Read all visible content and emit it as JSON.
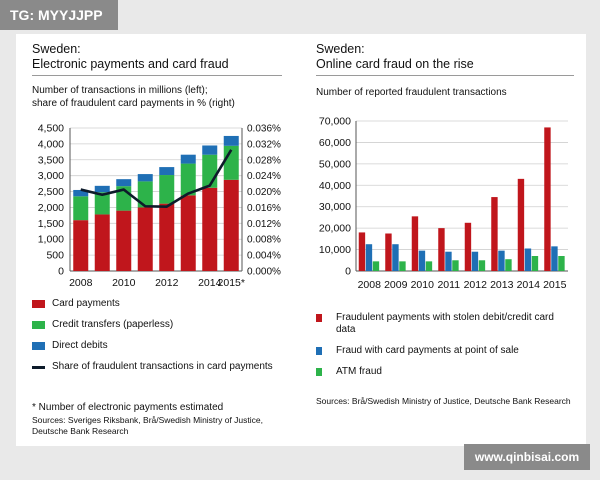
{
  "watermark_top": "TG: MYYJJPP",
  "watermark_bottom": "www.qinbisai.com",
  "chart_data": [
    {
      "type": "bar",
      "stacked": true,
      "title": "Sweden:",
      "subtitle": "Electronic payments and card fraud",
      "ylabel": "Number of transactions in millions (left);",
      "y2label": "share of fraudulent card payments in % (right)",
      "categories": [
        "2008",
        "2009",
        "2010",
        "2011",
        "2012",
        "2013",
        "2014",
        "2015*"
      ],
      "x_tick_labels": [
        "2008",
        "",
        "2010",
        "",
        "2012",
        "",
        "2014",
        "2015*"
      ],
      "ylim": [
        0,
        4500
      ],
      "y_ticks": [
        "0",
        "500",
        "1,000",
        "1,500",
        "2,000",
        "2,500",
        "3,000",
        "3,500",
        "4,000",
        "4,500"
      ],
      "y2lim": [
        0,
        0.036
      ],
      "y2_ticks": [
        "0.000%",
        "0.004%",
        "0.008%",
        "0.012%",
        "0.016%",
        "0.020%",
        "0.024%",
        "0.028%",
        "0.032%",
        "0.036%"
      ],
      "grid": true,
      "series": [
        {
          "name": "Card payments",
          "color": "#c0161c",
          "values": [
            1600,
            1780,
            1900,
            2000,
            2120,
            2380,
            2620,
            2870
          ]
        },
        {
          "name": "Credit transfers (paperless)",
          "color": "#2db34a",
          "values": [
            750,
            700,
            770,
            820,
            900,
            1000,
            1040,
            1070
          ]
        },
        {
          "name": "Direct debits",
          "color": "#1f6fb5",
          "values": [
            200,
            200,
            220,
            230,
            250,
            280,
            290,
            310
          ]
        }
      ],
      "line_series": {
        "name": "Share of fraudulent transactions in card payments",
        "color": "#0d1b2a",
        "axis": "right",
        "values": [
          0.0205,
          0.0192,
          0.0205,
          0.0163,
          0.0162,
          0.0195,
          0.0215,
          0.0305
        ]
      },
      "legend_position": "bottom",
      "note": "* Number of electronic payments estimated",
      "sources": "Sources: Sveriges Riksbank, Brå/Swedish Ministry of Justice, Deutsche Bank Research"
    },
    {
      "type": "bar",
      "title": "Sweden:",
      "subtitle": "Online card fraud on the rise",
      "ylabel": "Number of reported fraudulent transactions",
      "categories": [
        "2008",
        "2009",
        "2010",
        "2011",
        "2012",
        "2013",
        "2014",
        "2015"
      ],
      "ylim": [
        0,
        70000
      ],
      "y_ticks": [
        "0",
        "10,000",
        "20,000",
        "30,000",
        "40,000",
        "50,000",
        "60,000",
        "70,000"
      ],
      "grid": true,
      "series": [
        {
          "name": "Fraudulent payments with stolen debit/credit card data",
          "color": "#c0161c",
          "values": [
            18000,
            17500,
            25500,
            20000,
            22500,
            34500,
            43000,
            67000
          ]
        },
        {
          "name": "Fraud with card payments at point of sale",
          "color": "#1f6fb5",
          "values": [
            12500,
            12500,
            9500,
            9000,
            9000,
            9500,
            10500,
            11500
          ]
        },
        {
          "name": "ATM fraud",
          "color": "#2db34a",
          "values": [
            4500,
            4500,
            4500,
            5000,
            5000,
            5500,
            7000,
            7000
          ]
        }
      ],
      "legend_position": "bottom",
      "sources": "Sources: Brå/Swedish Ministry of Justice, Deutsche Bank Research"
    }
  ]
}
